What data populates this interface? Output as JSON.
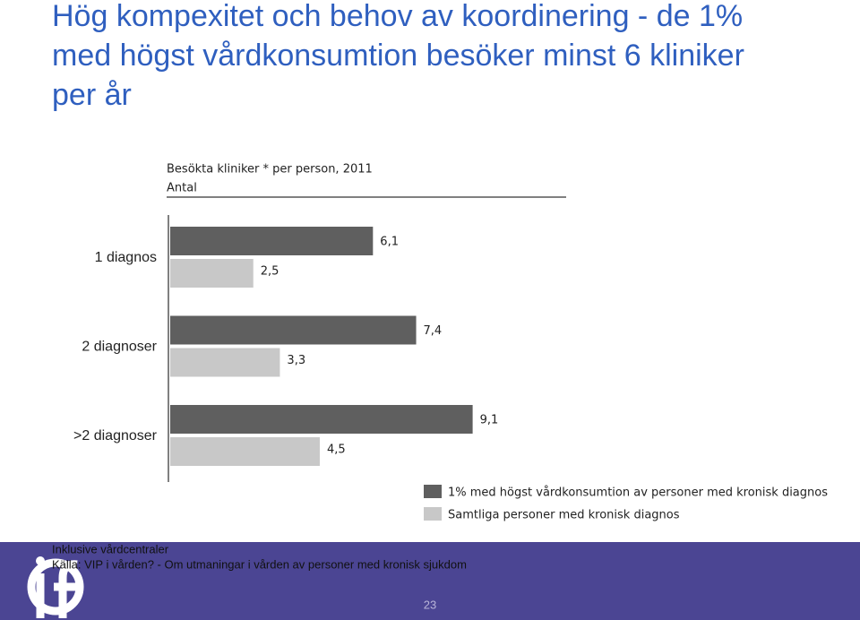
{
  "slide": {
    "title_lines": [
      "Hög kompexitet och behov av koordinering - de 1%",
      "med högst vårdkonsumtion besöker minst 6 kliniker",
      "per år"
    ],
    "footnote": "Inklusive vårdcentraler",
    "source": "Källa: VIP i vården? - Om utmaningar i vården av personer med kronisk sjukdom",
    "page_number": "23"
  },
  "chart_data": {
    "type": "bar",
    "orientation": "horizontal",
    "title": "Besökta kliniker * per person, 2011",
    "subtitle": "Antal",
    "categories": [
      "1 diagnos",
      "2 diagnoser",
      ">2 diagnoser"
    ],
    "series": [
      {
        "name": "1% med högst vårdkonsumtion av personer med kronisk diagnos",
        "color": "#5f5f5f",
        "values": [
          6.1,
          7.4,
          9.1
        ],
        "value_labels": [
          "6,1",
          "7,4",
          "9,1"
        ]
      },
      {
        "name": "Samtliga personer med kronisk diagnos",
        "color": "#c8c8c8",
        "values": [
          2.5,
          3.3,
          4.5
        ],
        "value_labels": [
          "2,5",
          "3,3",
          "4,5"
        ]
      }
    ]
  }
}
